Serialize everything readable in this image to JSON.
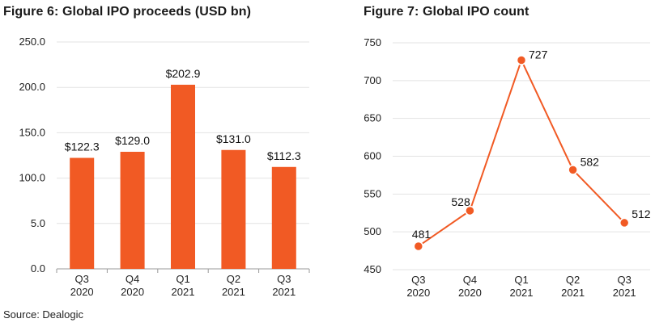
{
  "chart_data": [
    {
      "type": "bar",
      "title": "Figure 6: Global IPO proceeds (USD bn)",
      "categories": [
        [
          "Q3",
          "2020"
        ],
        [
          "Q4",
          "2020"
        ],
        [
          "Q1",
          "2021"
        ],
        [
          "Q2",
          "2021"
        ],
        [
          "Q3",
          "2021"
        ]
      ],
      "values": [
        122.3,
        129.0,
        202.9,
        131.0,
        112.3
      ],
      "data_labels": [
        "$122.3",
        "$129.0",
        "$202.9",
        "$131.0",
        "$112.3"
      ],
      "yticks": [
        "0.0",
        "5.0",
        "100.0",
        "150.0",
        "200.0",
        "250.0"
      ],
      "ylim": [
        0,
        250
      ],
      "grid": true,
      "color": "#F15A24"
    },
    {
      "type": "line",
      "title": "Figure 7: Global IPO count",
      "categories": [
        [
          "Q3",
          "2020"
        ],
        [
          "Q4",
          "2020"
        ],
        [
          "Q1",
          "2021"
        ],
        [
          "Q2",
          "2021"
        ],
        [
          "Q3",
          "2021"
        ]
      ],
      "values": [
        481,
        528,
        727,
        582,
        512
      ],
      "data_labels": [
        "481",
        "528",
        "727",
        "582",
        "512"
      ],
      "yticks": [
        "450",
        "500",
        "550",
        "600",
        "650",
        "700",
        "750"
      ],
      "ylim": [
        450,
        750
      ],
      "grid": true,
      "color": "#F15A24"
    }
  ],
  "source": "Source: Dealogic"
}
